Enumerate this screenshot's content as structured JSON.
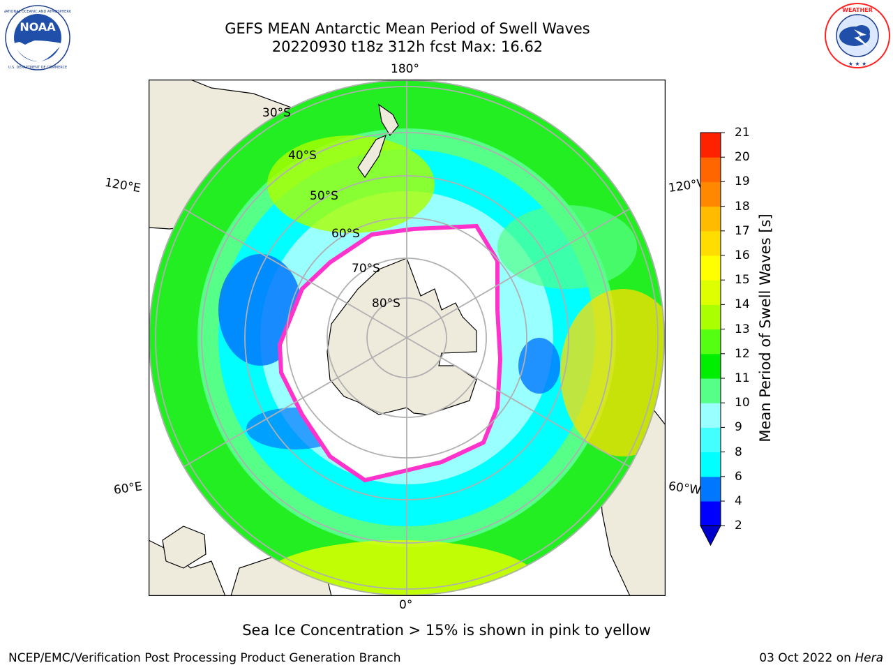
{
  "header": {
    "title_line1": "GEFS MEAN Antarctic Mean Period of Swell Waves",
    "title_line2": "20220930 t18z 312h fcst   Max: 16.62",
    "noaa_logo": {
      "text": "NOAA",
      "ring_text": "NATIONAL OCEANIC AND ATMOSPHERIC ADMINISTRATION · U.S. DEPARTMENT OF COMMERCE"
    },
    "nws_logo": {
      "ring_text": "NATIONAL WEATHER SERVICE"
    }
  },
  "map": {
    "projection": "south-polar-stereographic",
    "longitude_labels": {
      "top": "180°",
      "bottom": "0°",
      "upper_left": "120°E",
      "upper_right": "120°W",
      "lower_left": "60°E",
      "lower_right": "60°W"
    },
    "latitude_labels": [
      "30°S",
      "40°S",
      "50°S",
      "60°S",
      "70°S",
      "80°S"
    ],
    "colors": {
      "land": "#efebdc",
      "ice_edge": "#ff33cc",
      "ice_inner": "#ffc040",
      "grid": "#b0b0b0"
    }
  },
  "colorbar": {
    "label": "Mean Period of Swell Waves [s]",
    "ticks": [
      "2",
      "4",
      "6",
      "8",
      "9",
      "10",
      "11",
      "12",
      "13",
      "14",
      "15",
      "16",
      "17",
      "18",
      "19",
      "20",
      "21"
    ],
    "colors": [
      "#0000ff",
      "#0077ff",
      "#00ffff",
      "#44ffff",
      "#99ffff",
      "#55ff88",
      "#00ee00",
      "#55ff11",
      "#aaff00",
      "#ddff00",
      "#ffff00",
      "#ffdd00",
      "#ffbb00",
      "#ff8800",
      "#ff6600",
      "#ff2200"
    ],
    "under_color": "#0000cc"
  },
  "annotation": "Sea Ice Concentration > 15% is shown in pink to yellow",
  "footer": {
    "left": "NCEP/EMC/Verification Post Processing Product Generation Branch",
    "right_date": "03 Oct 2022 on ",
    "right_host": "Hera"
  }
}
